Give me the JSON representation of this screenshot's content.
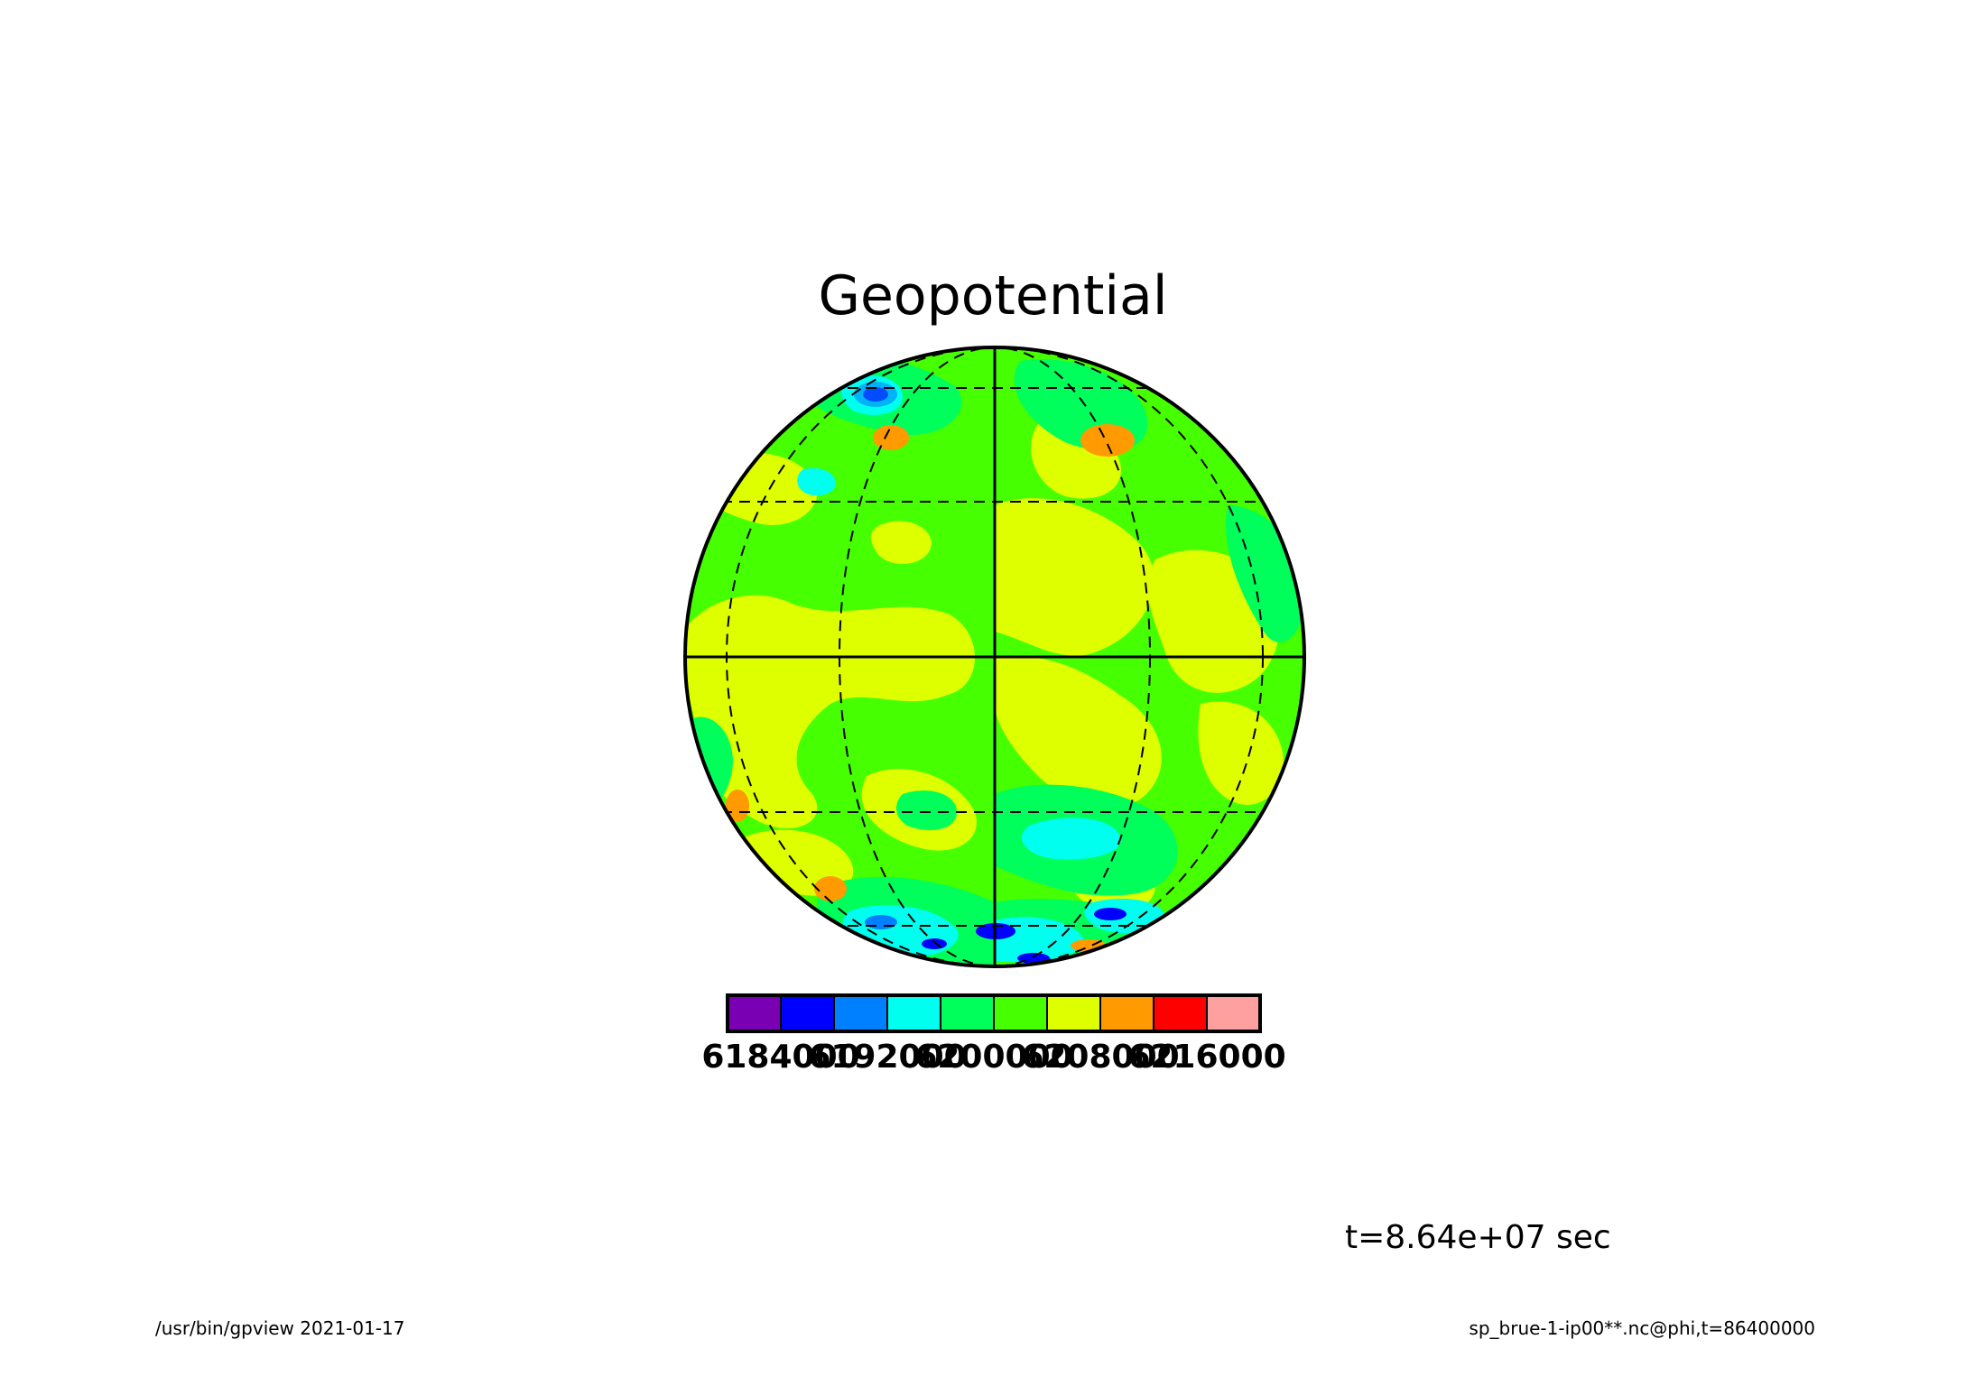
{
  "title": "Geopotential",
  "time_label": "t=8.64e+07 sec",
  "footer": {
    "left": "/usr/bin/gpview  2021-01-17",
    "right": "sp_brue-1-ip00**.nc@phi,t=86400000"
  },
  "colorbar": {
    "colors": [
      "#7a00b4",
      "#0000ff",
      "#0080ff",
      "#00ffee",
      "#00ff5a",
      "#46ff00",
      "#ddff00",
      "#ff9a00",
      "#ff0000",
      "#ffa0a0"
    ],
    "labels": [
      "6184000",
      "6192000",
      "6200000",
      "6208000",
      "6216000"
    ]
  },
  "map": {
    "projection": "orthographic",
    "parallels_dashed": true,
    "meridians_dashed": true,
    "background_color": "#46ff00"
  }
}
